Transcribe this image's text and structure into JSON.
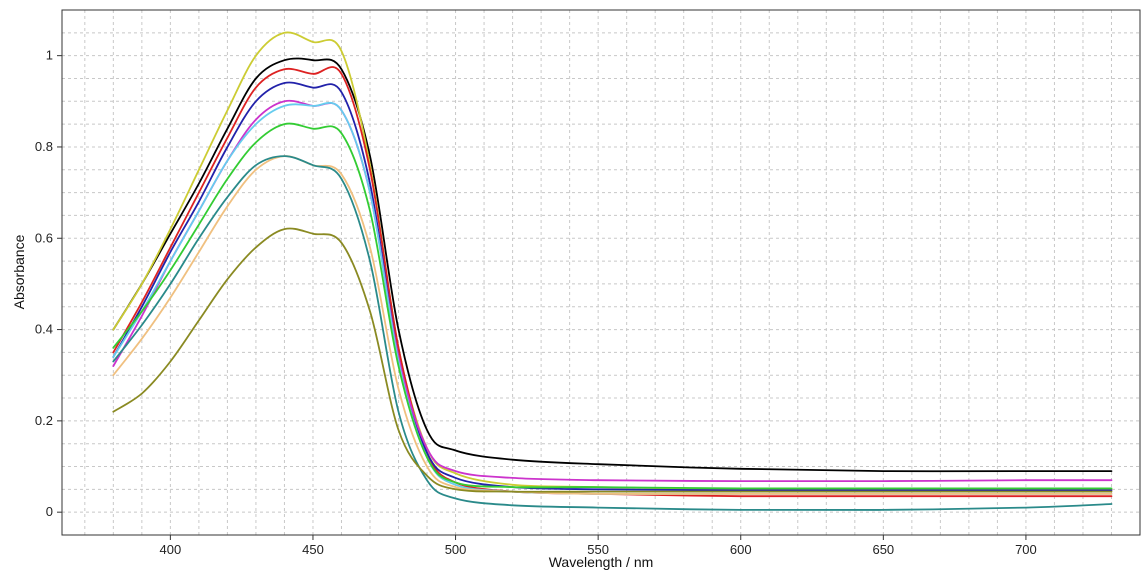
{
  "chart_data": {
    "type": "line",
    "title": "",
    "xlabel": "Wavelength / nm",
    "ylabel": "Absorbance",
    "xlim": [
      362,
      740
    ],
    "ylim": [
      -0.05,
      1.1
    ],
    "xticks": [
      400,
      450,
      500,
      550,
      600,
      650,
      700
    ],
    "yticks": [
      0,
      0.2,
      0.4,
      0.6,
      0.8,
      1
    ],
    "ytick_labels": [
      "0",
      "0.2",
      "0.4",
      "0.6",
      "0.8",
      "1"
    ],
    "xtick_labels": [
      "400",
      "450",
      "500",
      "550",
      "600",
      "650",
      "700"
    ],
    "grid": true,
    "legend": "none",
    "series": [
      {
        "color": "#000000",
        "x": [
          380,
          390,
          400,
          410,
          420,
          430,
          440,
          450,
          460,
          470,
          480,
          490,
          500,
          520,
          550,
          600,
          650,
          700,
          730
        ],
        "y": [
          0.4,
          0.5,
          0.61,
          0.72,
          0.84,
          0.95,
          0.99,
          0.99,
          0.97,
          0.78,
          0.4,
          0.18,
          0.135,
          0.115,
          0.105,
          0.095,
          0.09,
          0.09,
          0.09
        ]
      },
      {
        "color": "#cccc33",
        "x": [
          380,
          390,
          400,
          410,
          420,
          430,
          440,
          450,
          460,
          470,
          480,
          490,
          500,
          520,
          550,
          600,
          650,
          700,
          730
        ],
        "y": [
          0.4,
          0.5,
          0.62,
          0.75,
          0.88,
          1.0,
          1.05,
          1.03,
          1.01,
          0.76,
          0.36,
          0.14,
          0.085,
          0.06,
          0.055,
          0.05,
          0.05,
          0.05,
          0.05
        ]
      },
      {
        "color": "#dd2222",
        "x": [
          380,
          390,
          400,
          410,
          420,
          430,
          440,
          450,
          460,
          470,
          480,
          490,
          500,
          520,
          550,
          600,
          650,
          700,
          730
        ],
        "y": [
          0.35,
          0.46,
          0.58,
          0.7,
          0.82,
          0.93,
          0.97,
          0.96,
          0.96,
          0.75,
          0.36,
          0.13,
          0.065,
          0.045,
          0.04,
          0.035,
          0.035,
          0.035,
          0.035
        ]
      },
      {
        "color": "#2222aa",
        "x": [
          380,
          390,
          400,
          410,
          420,
          430,
          440,
          450,
          460,
          470,
          480,
          490,
          500,
          520,
          550,
          600,
          650,
          700,
          730
        ],
        "y": [
          0.34,
          0.45,
          0.57,
          0.68,
          0.8,
          0.9,
          0.94,
          0.93,
          0.92,
          0.72,
          0.34,
          0.13,
          0.075,
          0.055,
          0.05,
          0.048,
          0.048,
          0.048,
          0.048
        ]
      },
      {
        "color": "#cc33cc",
        "x": [
          380,
          390,
          400,
          410,
          420,
          430,
          440,
          450,
          460,
          470,
          480,
          490,
          500,
          520,
          550,
          600,
          650,
          700,
          730
        ],
        "y": [
          0.32,
          0.43,
          0.55,
          0.66,
          0.77,
          0.86,
          0.9,
          0.89,
          0.88,
          0.7,
          0.34,
          0.14,
          0.09,
          0.075,
          0.07,
          0.068,
          0.068,
          0.07,
          0.07
        ]
      },
      {
        "color": "#66ccee",
        "x": [
          380,
          390,
          400,
          410,
          420,
          430,
          440,
          450,
          460,
          470,
          480,
          490,
          500,
          520,
          550,
          600,
          650,
          700,
          730
        ],
        "y": [
          0.34,
          0.44,
          0.55,
          0.66,
          0.77,
          0.85,
          0.89,
          0.89,
          0.88,
          0.7,
          0.33,
          0.12,
          0.06,
          0.045,
          0.04,
          0.04,
          0.04,
          0.04,
          0.04
        ]
      },
      {
        "color": "#33cc33",
        "x": [
          380,
          390,
          400,
          410,
          420,
          430,
          440,
          450,
          460,
          470,
          480,
          490,
          500,
          520,
          550,
          600,
          650,
          700,
          730
        ],
        "y": [
          0.36,
          0.44,
          0.53,
          0.63,
          0.73,
          0.81,
          0.85,
          0.84,
          0.83,
          0.66,
          0.32,
          0.12,
          0.065,
          0.055,
          0.055,
          0.052,
          0.052,
          0.052,
          0.052
        ]
      },
      {
        "color": "#f0c080",
        "x": [
          380,
          390,
          400,
          410,
          420,
          430,
          440,
          450,
          460,
          470,
          480,
          490,
          500,
          520,
          550,
          600,
          650,
          700,
          730
        ],
        "y": [
          0.3,
          0.38,
          0.47,
          0.57,
          0.67,
          0.75,
          0.78,
          0.76,
          0.74,
          0.58,
          0.27,
          0.1,
          0.055,
          0.045,
          0.04,
          0.04,
          0.04,
          0.04,
          0.04
        ]
      },
      {
        "color": "#2a8a8a",
        "x": [
          380,
          390,
          400,
          410,
          420,
          430,
          440,
          450,
          460,
          470,
          480,
          490,
          500,
          520,
          550,
          600,
          650,
          700,
          730
        ],
        "y": [
          0.33,
          0.41,
          0.5,
          0.6,
          0.69,
          0.76,
          0.78,
          0.76,
          0.73,
          0.55,
          0.22,
          0.07,
          0.03,
          0.015,
          0.01,
          0.005,
          0.005,
          0.01,
          0.018
        ]
      },
      {
        "color": "#8a8a22",
        "x": [
          380,
          390,
          400,
          410,
          420,
          430,
          440,
          450,
          460,
          470,
          480,
          490,
          500,
          520,
          550,
          600,
          650,
          700,
          730
        ],
        "y": [
          0.22,
          0.26,
          0.33,
          0.42,
          0.51,
          0.58,
          0.62,
          0.61,
          0.59,
          0.44,
          0.18,
          0.08,
          0.05,
          0.045,
          0.045,
          0.045,
          0.045,
          0.045,
          0.045
        ]
      }
    ]
  }
}
